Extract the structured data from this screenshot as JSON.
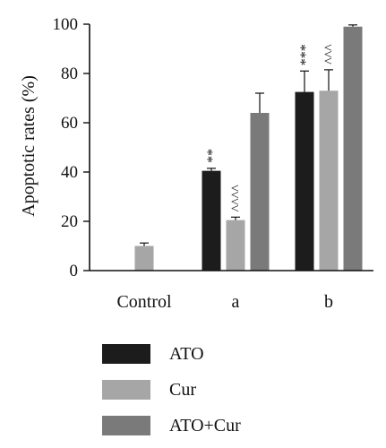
{
  "chart_data": {
    "type": "bar",
    "ylabel": "Apoptotic rates (%)",
    "xlabel": "",
    "ylim": [
      0,
      100
    ],
    "yticks": [
      0,
      20,
      40,
      60,
      80,
      100
    ],
    "categories": [
      "Control",
      "a",
      "b"
    ],
    "series": [
      {
        "name": "ATO",
        "color": "#1c1c1c",
        "values": [
          null,
          40.5,
          72.5
        ],
        "errors": [
          null,
          1.0,
          8.5
        ],
        "annotations": [
          "",
          "**",
          "***"
        ]
      },
      {
        "name": "Cur",
        "color": "#a6a6a6",
        "values": [
          10,
          20.5,
          73
        ],
        "errors": [
          1.2,
          1.2,
          8.5
        ],
        "annotations": [
          "",
          "^^^^",
          "^^^"
        ]
      },
      {
        "name": "ATO+Cur",
        "color": "#7a7a7a",
        "values": [
          null,
          64,
          99
        ],
        "errors": [
          null,
          8,
          0.7
        ],
        "annotations": [
          "",
          "",
          ""
        ]
      }
    ],
    "legend_position": "bottom"
  }
}
